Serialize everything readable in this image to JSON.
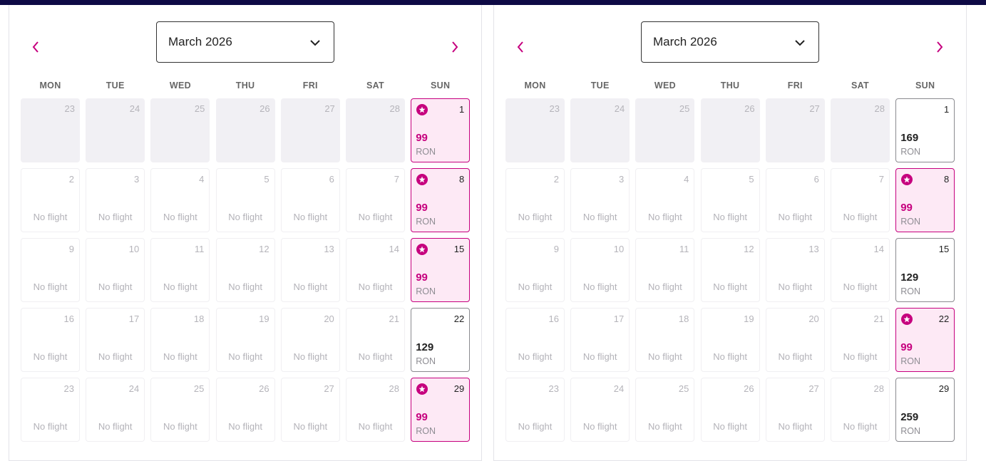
{
  "colors": {
    "accent": "#c6007e",
    "promo_bg": "#fde9f5",
    "topbar": "#0e0a45"
  },
  "icons": {
    "prev": "chevron-left-icon",
    "next": "chevron-right-icon",
    "dropdown": "chevron-down-icon",
    "promo": "star-badge-icon"
  },
  "weekdays": [
    "MON",
    "TUE",
    "WED",
    "THU",
    "FRI",
    "SAT",
    "SUN"
  ],
  "calendars": [
    {
      "month_label": "March 2026",
      "weeks": [
        [
          {
            "day": "23",
            "state": "past"
          },
          {
            "day": "24",
            "state": "past"
          },
          {
            "day": "25",
            "state": "past"
          },
          {
            "day": "26",
            "state": "past"
          },
          {
            "day": "27",
            "state": "past"
          },
          {
            "day": "28",
            "state": "past"
          },
          {
            "day": "1",
            "state": "promo",
            "price": "99",
            "currency": "RON"
          }
        ],
        [
          {
            "day": "2",
            "state": "noflight",
            "text": "No flight"
          },
          {
            "day": "3",
            "state": "noflight",
            "text": "No flight"
          },
          {
            "day": "4",
            "state": "noflight",
            "text": "No flight"
          },
          {
            "day": "5",
            "state": "noflight",
            "text": "No flight"
          },
          {
            "day": "6",
            "state": "noflight",
            "text": "No flight"
          },
          {
            "day": "7",
            "state": "noflight",
            "text": "No flight"
          },
          {
            "day": "8",
            "state": "promo",
            "price": "99",
            "currency": "RON"
          }
        ],
        [
          {
            "day": "9",
            "state": "noflight",
            "text": "No flight"
          },
          {
            "day": "10",
            "state": "noflight",
            "text": "No flight"
          },
          {
            "day": "11",
            "state": "noflight",
            "text": "No flight"
          },
          {
            "day": "12",
            "state": "noflight",
            "text": "No flight"
          },
          {
            "day": "13",
            "state": "noflight",
            "text": "No flight"
          },
          {
            "day": "14",
            "state": "noflight",
            "text": "No flight"
          },
          {
            "day": "15",
            "state": "promo",
            "price": "99",
            "currency": "RON"
          }
        ],
        [
          {
            "day": "16",
            "state": "noflight",
            "text": "No flight"
          },
          {
            "day": "17",
            "state": "noflight",
            "text": "No flight"
          },
          {
            "day": "18",
            "state": "noflight",
            "text": "No flight"
          },
          {
            "day": "19",
            "state": "noflight",
            "text": "No flight"
          },
          {
            "day": "20",
            "state": "noflight",
            "text": "No flight"
          },
          {
            "day": "21",
            "state": "noflight",
            "text": "No flight"
          },
          {
            "day": "22",
            "state": "price",
            "price": "129",
            "currency": "RON"
          }
        ],
        [
          {
            "day": "23",
            "state": "noflight",
            "text": "No flight"
          },
          {
            "day": "24",
            "state": "noflight",
            "text": "No flight"
          },
          {
            "day": "25",
            "state": "noflight",
            "text": "No flight"
          },
          {
            "day": "26",
            "state": "noflight",
            "text": "No flight"
          },
          {
            "day": "27",
            "state": "noflight",
            "text": "No flight"
          },
          {
            "day": "28",
            "state": "noflight",
            "text": "No flight"
          },
          {
            "day": "29",
            "state": "promo",
            "price": "99",
            "currency": "RON"
          }
        ]
      ]
    },
    {
      "month_label": "March 2026",
      "weeks": [
        [
          {
            "day": "23",
            "state": "past"
          },
          {
            "day": "24",
            "state": "past"
          },
          {
            "day": "25",
            "state": "past"
          },
          {
            "day": "26",
            "state": "past"
          },
          {
            "day": "27",
            "state": "past"
          },
          {
            "day": "28",
            "state": "past"
          },
          {
            "day": "1",
            "state": "price",
            "price": "169",
            "currency": "RON"
          }
        ],
        [
          {
            "day": "2",
            "state": "noflight",
            "text": "No flight"
          },
          {
            "day": "3",
            "state": "noflight",
            "text": "No flight"
          },
          {
            "day": "4",
            "state": "noflight",
            "text": "No flight"
          },
          {
            "day": "5",
            "state": "noflight",
            "text": "No flight"
          },
          {
            "day": "6",
            "state": "noflight",
            "text": "No flight"
          },
          {
            "day": "7",
            "state": "noflight",
            "text": "No flight"
          },
          {
            "day": "8",
            "state": "promo",
            "price": "99",
            "currency": "RON"
          }
        ],
        [
          {
            "day": "9",
            "state": "noflight",
            "text": "No flight"
          },
          {
            "day": "10",
            "state": "noflight",
            "text": "No flight"
          },
          {
            "day": "11",
            "state": "noflight",
            "text": "No flight"
          },
          {
            "day": "12",
            "state": "noflight",
            "text": "No flight"
          },
          {
            "day": "13",
            "state": "noflight",
            "text": "No flight"
          },
          {
            "day": "14",
            "state": "noflight",
            "text": "No flight"
          },
          {
            "day": "15",
            "state": "price",
            "price": "129",
            "currency": "RON"
          }
        ],
        [
          {
            "day": "16",
            "state": "noflight",
            "text": "No flight"
          },
          {
            "day": "17",
            "state": "noflight",
            "text": "No flight"
          },
          {
            "day": "18",
            "state": "noflight",
            "text": "No flight"
          },
          {
            "day": "19",
            "state": "noflight",
            "text": "No flight"
          },
          {
            "day": "20",
            "state": "noflight",
            "text": "No flight"
          },
          {
            "day": "21",
            "state": "noflight",
            "text": "No flight"
          },
          {
            "day": "22",
            "state": "promo",
            "price": "99",
            "currency": "RON"
          }
        ],
        [
          {
            "day": "23",
            "state": "noflight",
            "text": "No flight"
          },
          {
            "day": "24",
            "state": "noflight",
            "text": "No flight"
          },
          {
            "day": "25",
            "state": "noflight",
            "text": "No flight"
          },
          {
            "day": "26",
            "state": "noflight",
            "text": "No flight"
          },
          {
            "day": "27",
            "state": "noflight",
            "text": "No flight"
          },
          {
            "day": "28",
            "state": "noflight",
            "text": "No flight"
          },
          {
            "day": "29",
            "state": "price",
            "price": "259",
            "currency": "RON"
          }
        ]
      ]
    }
  ]
}
